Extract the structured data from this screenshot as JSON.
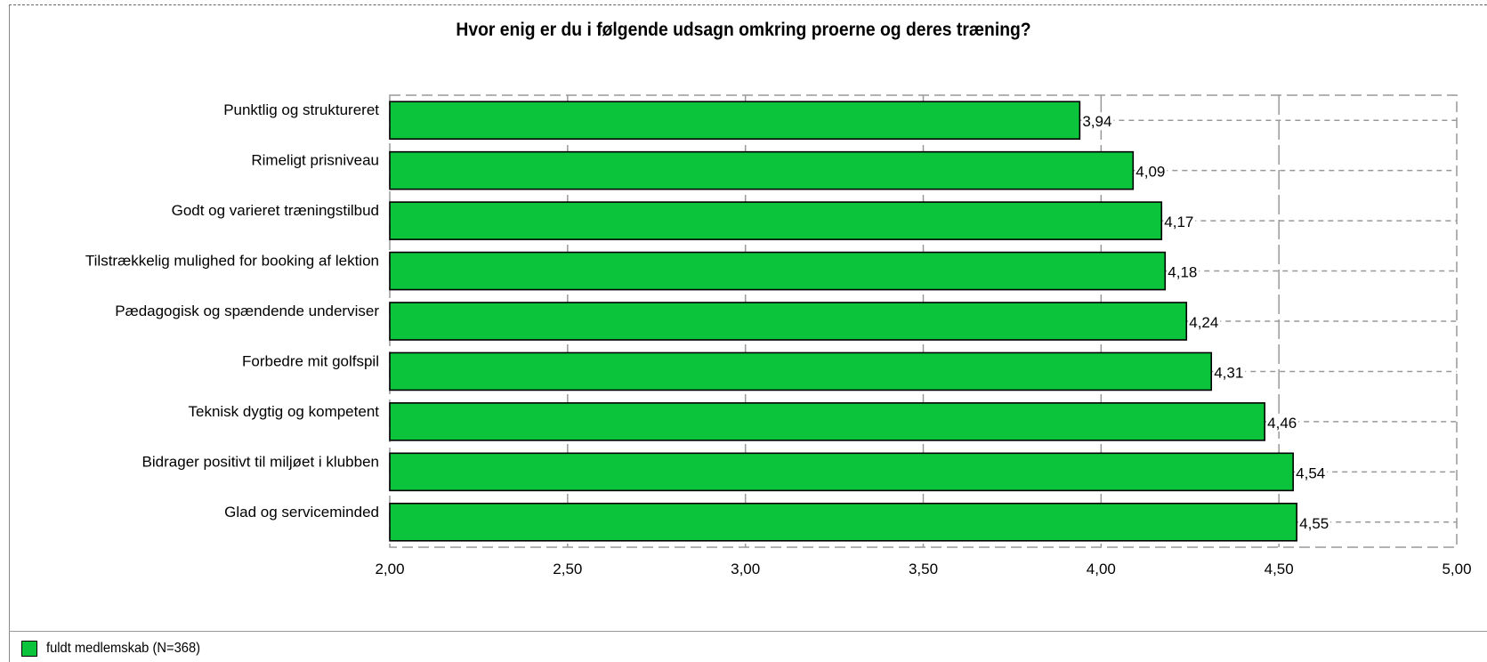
{
  "chart_data": {
    "type": "bar",
    "orientation": "horizontal",
    "title": "Hvor enig er du i følgende udsagn omkring proerne og deres træning?",
    "categories": [
      "Punktlig og struktureret",
      "Rimeligt prisniveau",
      "Godt og varieret træningstilbud",
      "Tilstrækkelig mulighed for booking af lektion",
      "Pædagogisk og spændende underviser",
      "Forbedre mit golfspil",
      "Teknisk dygtig og kompetent",
      "Bidrager positivt til miljøet i klubben",
      "Glad og serviceminded"
    ],
    "series": [
      {
        "name": "fuldt medlemskab (N=368)",
        "color": "#0cc43c",
        "values": [
          3.94,
          4.09,
          4.17,
          4.18,
          4.24,
          4.31,
          4.46,
          4.54,
          4.55
        ],
        "labels": [
          "3,94",
          "4,09",
          "4,17",
          "4,18",
          "4,24",
          "4,31",
          "4,46",
          "4,54",
          "4,55"
        ]
      }
    ],
    "xlim": [
      2.0,
      5.0
    ],
    "xticks": [
      2.0,
      2.5,
      3.0,
      3.5,
      4.0,
      4.5,
      5.0
    ],
    "xtick_labels": [
      "2,00",
      "2,50",
      "3,00",
      "3,50",
      "4,00",
      "4,50",
      "5,00"
    ],
    "xlabel": "",
    "ylabel": "",
    "grid": true,
    "legend_position": "bottom-left"
  },
  "legend": {
    "label": "fuldt medlemskab (N=368)"
  }
}
